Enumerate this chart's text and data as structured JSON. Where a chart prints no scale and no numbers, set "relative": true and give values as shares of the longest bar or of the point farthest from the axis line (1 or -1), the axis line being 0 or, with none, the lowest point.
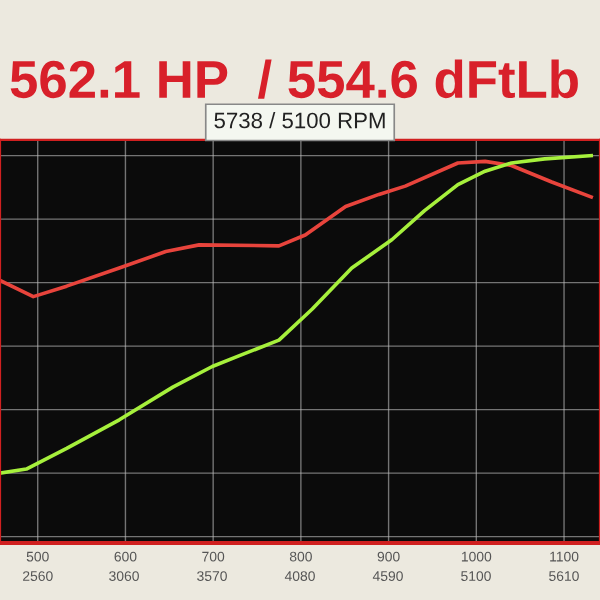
{
  "chart_data": {
    "type": "line",
    "title": "562.1 HP  / 554.6 dFtLb",
    "subtitle": "5738 / 5100 RPM",
    "relative": true,
    "grid": true,
    "marker": "none",
    "line_style": "solid",
    "xlim": [
      457,
      1141
    ],
    "xticks": [
      500,
      600,
      700,
      800,
      900,
      1000,
      1100
    ],
    "x2lim": [
      2341,
      5819
    ],
    "x2ticks": [
      2560,
      3060,
      3570,
      4080,
      4590,
      5100,
      5610
    ],
    "series": [
      {
        "color": "#e8443c",
        "x": [
          457,
          495,
          533,
          593,
          646,
          684,
          775,
          805,
          851,
          889,
          919,
          979,
          1010,
          1040,
          1086,
          1131
        ],
        "values": [
          0.607,
          0.556,
          0.589,
          0.646,
          0.698,
          0.719,
          0.716,
          0.75,
          0.84,
          0.878,
          0.904,
          0.977,
          0.982,
          0.969,
          0.917,
          0.87
        ]
      },
      {
        "color": "#a6f03c",
        "x": [
          457,
          487,
          533,
          593,
          654,
          699,
          730,
          775,
          813,
          858,
          904,
          941,
          979,
          1010,
          1040,
          1078,
          1131
        ],
        "values": [
          0,
          0.013,
          0.078,
          0.168,
          0.271,
          0.336,
          0.37,
          0.419,
          0.517,
          0.646,
          0.736,
          0.827,
          0.909,
          0.951,
          0.977,
          0.99,
          1.0
        ]
      }
    ]
  }
}
